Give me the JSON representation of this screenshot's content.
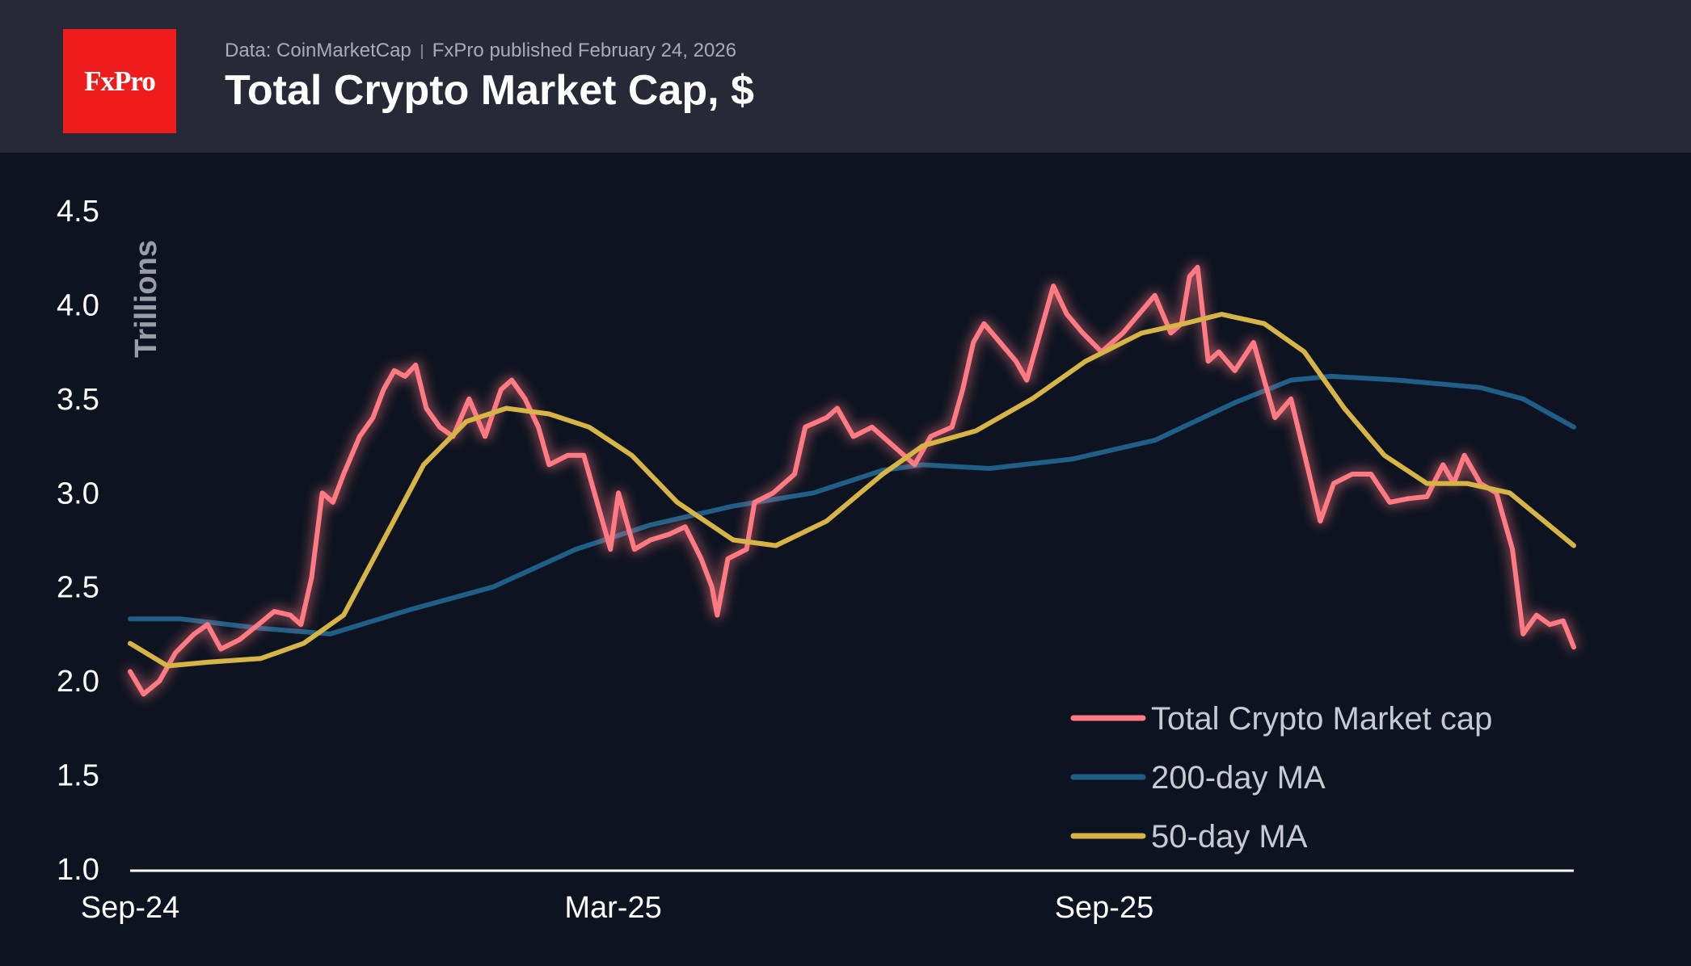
{
  "header": {
    "logo_text": "FxPro",
    "source": "Data: CoinMarketCap",
    "published": "FxPro published February 24, 2026",
    "title": "Total Crypto Market Cap, $"
  },
  "colors": {
    "background": "#0d1320",
    "header_background": "#272a36",
    "logo": "#ee1c1c",
    "market_cap": "#ff7a82",
    "ma200": "#1f5e86",
    "ma50": "#d7b446",
    "axis": "#ffffff"
  },
  "chart_data": {
    "type": "line",
    "title": "Total Crypto Market Cap, $",
    "ylabel": "Trillions",
    "xlabel": "",
    "ylim": [
      1.0,
      4.5
    ],
    "yticks": [
      "1.0",
      "1.5",
      "2.0",
      "2.5",
      "3.0",
      "3.5",
      "4.0",
      "4.5"
    ],
    "x_range": [
      "2024-09-01",
      "2026-02-24"
    ],
    "xticks": [
      {
        "date": "2024-09-01",
        "label": "Sep-24"
      },
      {
        "date": "2025-03-01",
        "label": "Mar-25"
      },
      {
        "date": "2025-09-01",
        "label": "Sep-25"
      }
    ],
    "grid": false,
    "legend_position": "bottom-right",
    "series": [
      {
        "name": "Total Crypto Market cap",
        "color": "#ff7a82",
        "points": [
          [
            "2024-09-01",
            2.05
          ],
          [
            "2024-09-06",
            1.93
          ],
          [
            "2024-09-12",
            2.0
          ],
          [
            "2024-09-18",
            2.15
          ],
          [
            "2024-09-25",
            2.25
          ],
          [
            "2024-09-30",
            2.3
          ],
          [
            "2024-10-05",
            2.17
          ],
          [
            "2024-10-12",
            2.22
          ],
          [
            "2024-10-19",
            2.3
          ],
          [
            "2024-10-25",
            2.37
          ],
          [
            "2024-10-31",
            2.35
          ],
          [
            "2024-11-04",
            2.3
          ],
          [
            "2024-11-08",
            2.55
          ],
          [
            "2024-11-12",
            3.0
          ],
          [
            "2024-11-16",
            2.95
          ],
          [
            "2024-11-20",
            3.1
          ],
          [
            "2024-11-26",
            3.3
          ],
          [
            "2024-12-01",
            3.4
          ],
          [
            "2024-12-05",
            3.55
          ],
          [
            "2024-12-09",
            3.65
          ],
          [
            "2024-12-13",
            3.62
          ],
          [
            "2024-12-17",
            3.68
          ],
          [
            "2024-12-21",
            3.45
          ],
          [
            "2024-12-26",
            3.35
          ],
          [
            "2024-12-31",
            3.3
          ],
          [
            "2025-01-06",
            3.5
          ],
          [
            "2025-01-12",
            3.3
          ],
          [
            "2025-01-18",
            3.55
          ],
          [
            "2025-01-22",
            3.6
          ],
          [
            "2025-01-27",
            3.5
          ],
          [
            "2025-02-01",
            3.35
          ],
          [
            "2025-02-05",
            3.15
          ],
          [
            "2025-02-12",
            3.2
          ],
          [
            "2025-02-18",
            3.2
          ],
          [
            "2025-02-24",
            2.9
          ],
          [
            "2025-02-28",
            2.7
          ],
          [
            "2025-03-03",
            3.0
          ],
          [
            "2025-03-09",
            2.7
          ],
          [
            "2025-03-15",
            2.75
          ],
          [
            "2025-03-22",
            2.78
          ],
          [
            "2025-03-28",
            2.82
          ],
          [
            "2025-04-03",
            2.65
          ],
          [
            "2025-04-07",
            2.5
          ],
          [
            "2025-04-09",
            2.35
          ],
          [
            "2025-04-13",
            2.65
          ],
          [
            "2025-04-20",
            2.7
          ],
          [
            "2025-04-23",
            2.95
          ],
          [
            "2025-04-30",
            3.0
          ],
          [
            "2025-05-08",
            3.1
          ],
          [
            "2025-05-12",
            3.35
          ],
          [
            "2025-05-20",
            3.4
          ],
          [
            "2025-05-24",
            3.45
          ],
          [
            "2025-05-30",
            3.3
          ],
          [
            "2025-06-06",
            3.35
          ],
          [
            "2025-06-14",
            3.25
          ],
          [
            "2025-06-22",
            3.15
          ],
          [
            "2025-06-28",
            3.3
          ],
          [
            "2025-07-06",
            3.35
          ],
          [
            "2025-07-10",
            3.55
          ],
          [
            "2025-07-14",
            3.8
          ],
          [
            "2025-07-18",
            3.9
          ],
          [
            "2025-07-24",
            3.8
          ],
          [
            "2025-07-30",
            3.7
          ],
          [
            "2025-08-03",
            3.6
          ],
          [
            "2025-08-08",
            3.85
          ],
          [
            "2025-08-13",
            4.1
          ],
          [
            "2025-08-18",
            3.95
          ],
          [
            "2025-08-24",
            3.85
          ],
          [
            "2025-08-31",
            3.75
          ],
          [
            "2025-09-08",
            3.85
          ],
          [
            "2025-09-14",
            3.95
          ],
          [
            "2025-09-20",
            4.05
          ],
          [
            "2025-09-26",
            3.85
          ],
          [
            "2025-09-30",
            3.9
          ],
          [
            "2025-10-03",
            4.15
          ],
          [
            "2025-10-06",
            4.2
          ],
          [
            "2025-10-10",
            3.7
          ],
          [
            "2025-10-14",
            3.75
          ],
          [
            "2025-10-20",
            3.65
          ],
          [
            "2025-10-27",
            3.8
          ],
          [
            "2025-10-31",
            3.6
          ],
          [
            "2025-11-04",
            3.4
          ],
          [
            "2025-11-10",
            3.5
          ],
          [
            "2025-11-16",
            3.15
          ],
          [
            "2025-11-21",
            2.85
          ],
          [
            "2025-11-26",
            3.05
          ],
          [
            "2025-12-03",
            3.1
          ],
          [
            "2025-12-10",
            3.1
          ],
          [
            "2025-12-17",
            2.95
          ],
          [
            "2025-12-24",
            2.97
          ],
          [
            "2025-12-31",
            2.98
          ],
          [
            "2026-01-06",
            3.15
          ],
          [
            "2026-01-10",
            3.05
          ],
          [
            "2026-01-14",
            3.2
          ],
          [
            "2026-01-20",
            3.05
          ],
          [
            "2026-01-26",
            3.0
          ],
          [
            "2026-02-01",
            2.7
          ],
          [
            "2026-02-05",
            2.25
          ],
          [
            "2026-02-10",
            2.35
          ],
          [
            "2026-02-15",
            2.3
          ],
          [
            "2026-02-20",
            2.32
          ],
          [
            "2026-02-24",
            2.18
          ]
        ]
      },
      {
        "name": "200-day MA",
        "color": "#1f5e86",
        "points": [
          [
            "2024-09-01",
            2.33
          ],
          [
            "2024-09-20",
            2.33
          ],
          [
            "2024-10-20",
            2.28
          ],
          [
            "2024-11-15",
            2.25
          ],
          [
            "2024-12-15",
            2.38
          ],
          [
            "2025-01-15",
            2.5
          ],
          [
            "2025-02-15",
            2.7
          ],
          [
            "2025-03-15",
            2.83
          ],
          [
            "2025-04-15",
            2.93
          ],
          [
            "2025-05-15",
            3.0
          ],
          [
            "2025-06-10",
            3.12
          ],
          [
            "2025-06-25",
            3.15
          ],
          [
            "2025-07-20",
            3.13
          ],
          [
            "2025-08-20",
            3.18
          ],
          [
            "2025-09-20",
            3.28
          ],
          [
            "2025-10-20",
            3.48
          ],
          [
            "2025-11-10",
            3.6
          ],
          [
            "2025-11-25",
            3.62
          ],
          [
            "2025-12-20",
            3.6
          ],
          [
            "2026-01-20",
            3.56
          ],
          [
            "2026-02-05",
            3.5
          ],
          [
            "2026-02-24",
            3.35
          ]
        ]
      },
      {
        "name": "50-day MA",
        "color": "#d7b446",
        "points": [
          [
            "2024-09-01",
            2.2
          ],
          [
            "2024-09-15",
            2.08
          ],
          [
            "2024-09-30",
            2.1
          ],
          [
            "2024-10-20",
            2.12
          ],
          [
            "2024-11-05",
            2.2
          ],
          [
            "2024-11-20",
            2.35
          ],
          [
            "2024-12-05",
            2.75
          ],
          [
            "2024-12-20",
            3.15
          ],
          [
            "2025-01-05",
            3.38
          ],
          [
            "2025-01-20",
            3.45
          ],
          [
            "2025-02-05",
            3.42
          ],
          [
            "2025-02-20",
            3.35
          ],
          [
            "2025-03-08",
            3.2
          ],
          [
            "2025-03-25",
            2.95
          ],
          [
            "2025-04-15",
            2.75
          ],
          [
            "2025-05-01",
            2.72
          ],
          [
            "2025-05-20",
            2.85
          ],
          [
            "2025-06-10",
            3.1
          ],
          [
            "2025-06-25",
            3.25
          ],
          [
            "2025-07-15",
            3.33
          ],
          [
            "2025-08-05",
            3.5
          ],
          [
            "2025-08-25",
            3.7
          ],
          [
            "2025-09-15",
            3.85
          ],
          [
            "2025-10-01",
            3.9
          ],
          [
            "2025-10-15",
            3.95
          ],
          [
            "2025-10-31",
            3.9
          ],
          [
            "2025-11-15",
            3.75
          ],
          [
            "2025-11-30",
            3.45
          ],
          [
            "2025-12-15",
            3.2
          ],
          [
            "2025-12-31",
            3.05
          ],
          [
            "2026-01-15",
            3.05
          ],
          [
            "2026-01-31",
            3.0
          ],
          [
            "2026-02-24",
            2.72
          ]
        ]
      }
    ]
  }
}
